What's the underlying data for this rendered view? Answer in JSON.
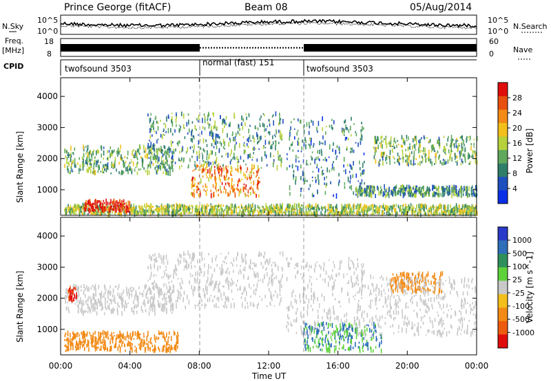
{
  "header": {
    "title": "Prince George (fitACF)",
    "beam": "Beam 08",
    "date": "05/Aug/2014"
  },
  "strips": {
    "nsky_label": "N.Sky",
    "nsky_ticks": [
      "10^5",
      "10^0"
    ],
    "nsearch_label": "N.Search",
    "nsearch_ticks": [
      "10^5",
      "10^0"
    ],
    "freq_label": "Freq.",
    "freq_unit": "[MHz]",
    "freq_ticks": [
      "18",
      "8"
    ],
    "nave_label": "Nave",
    "nave_ticks": [
      "60",
      "0"
    ],
    "cpid_label": "CPID",
    "cpid_segments": [
      {
        "label": "twofsound 3503",
        "start_h": 0,
        "end_h": 8
      },
      {
        "label": "normal (fast) 151",
        "start_h": 8,
        "end_h": 14
      },
      {
        "label": "twofsound 3503",
        "start_h": 14,
        "end_h": 24
      }
    ]
  },
  "x_axis": {
    "label": "Time UT",
    "ticks": [
      "00:00",
      "04:00",
      "08:00",
      "12:00",
      "16:00",
      "20:00",
      "00:00"
    ]
  },
  "colors": {
    "power": [
      "#0a2ee8",
      "#1f4fbf",
      "#2e7e6a",
      "#5fa85c",
      "#b6d13a",
      "#f3c01a",
      "#f38a15",
      "#e8500f",
      "#e00c0c"
    ],
    "velocity": [
      "#2a3ac8",
      "#2d6fb8",
      "#2e8f5a",
      "#5ed23a",
      "#c9c9c9",
      "#f3c01a",
      "#f38a15",
      "#ee5a10",
      "#e00c0c"
    ]
  },
  "chart_data": [
    {
      "type": "heatmap",
      "title": "",
      "ylabel": "Slant Range [km]",
      "xlabel": "",
      "x_range_hours": [
        0,
        24
      ],
      "ylim": [
        180,
        4600
      ],
      "y_ticks": [
        1000,
        2000,
        3000,
        4000
      ],
      "colorbar": {
        "label": "Power [dB]",
        "ticks": [
          "4",
          "8",
          "12",
          "16",
          "20",
          "24",
          "28"
        ],
        "range": [
          0,
          30
        ]
      },
      "features": [
        {
          "name": "near-range E/F band",
          "hours": [
            0.2,
            24
          ],
          "range_km": [
            200,
            500
          ],
          "power_db": 14
        },
        {
          "name": "strong morning echoes",
          "hours": [
            1.3,
            4.0
          ],
          "range_km": [
            300,
            650
          ],
          "power_db": 28
        },
        {
          "name": "morning band",
          "hours": [
            0.2,
            6.5
          ],
          "range_km": [
            1500,
            2400
          ],
          "power_db": 12
        },
        {
          "name": "rising arc",
          "hours": [
            5.0,
            12.8
          ],
          "range_km": [
            1700,
            3450
          ],
          "power_db": 10
        },
        {
          "name": "descending arc",
          "hours": [
            13.0,
            17.5
          ],
          "range_km": [
            800,
            3300
          ],
          "power_db": 8
        },
        {
          "name": "midday patches",
          "hours": [
            7.5,
            11.5
          ],
          "range_km": [
            800,
            1800
          ],
          "power_db": 22
        },
        {
          "name": "evening band",
          "hours": [
            17.0,
            24
          ],
          "range_km": [
            800,
            1100
          ],
          "power_db": 10
        },
        {
          "name": "evening upper band",
          "hours": [
            18.0,
            24
          ],
          "range_km": [
            1800,
            2700
          ],
          "power_db": 12
        }
      ]
    },
    {
      "type": "heatmap",
      "title": "",
      "ylabel": "Slant Range [km]",
      "xlabel": "Time UT",
      "x_range_hours": [
        0,
        24
      ],
      "ylim": [
        180,
        4600
      ],
      "y_ticks": [
        1000,
        2000,
        3000,
        4000
      ],
      "colorbar": {
        "label": "Velocity [m s^-1]",
        "ticks": [
          "1000",
          "500",
          "100",
          "25",
          "-25",
          "-100",
          "-500",
          "-1000"
        ],
        "range": [
          -1000,
          1000
        ]
      },
      "features": [
        {
          "name": "ground scatter morning",
          "hours": [
            0.2,
            6.5
          ],
          "range_km": [
            1500,
            2400
          ],
          "velocity": 0
        },
        {
          "name": "red early patch",
          "hours": [
            0.4,
            0.9
          ],
          "range_km": [
            1900,
            2400
          ],
          "velocity": -1000
        },
        {
          "name": "orange morning near range",
          "hours": [
            0.2,
            6.8
          ],
          "range_km": [
            300,
            900
          ],
          "velocity": -150
        },
        {
          "name": "ground scatter arc",
          "hours": [
            5.0,
            12.8
          ],
          "range_km": [
            1700,
            3450
          ],
          "velocity": 0
        },
        {
          "name": "ground scatter descending",
          "hours": [
            13.0,
            17.5
          ],
          "range_km": [
            800,
            3300
          ],
          "velocity": 0
        },
        {
          "name": "green afternoon patches",
          "hours": [
            14.0,
            18.5
          ],
          "range_km": [
            300,
            1200
          ],
          "velocity": 100
        },
        {
          "name": "orange evening patches",
          "hours": [
            19.0,
            22.0
          ],
          "range_km": [
            2200,
            2800
          ],
          "velocity": -300
        },
        {
          "name": "ground scatter evening",
          "hours": [
            17.0,
            24
          ],
          "range_km": [
            800,
            2700
          ],
          "velocity": 0
        }
      ]
    }
  ]
}
